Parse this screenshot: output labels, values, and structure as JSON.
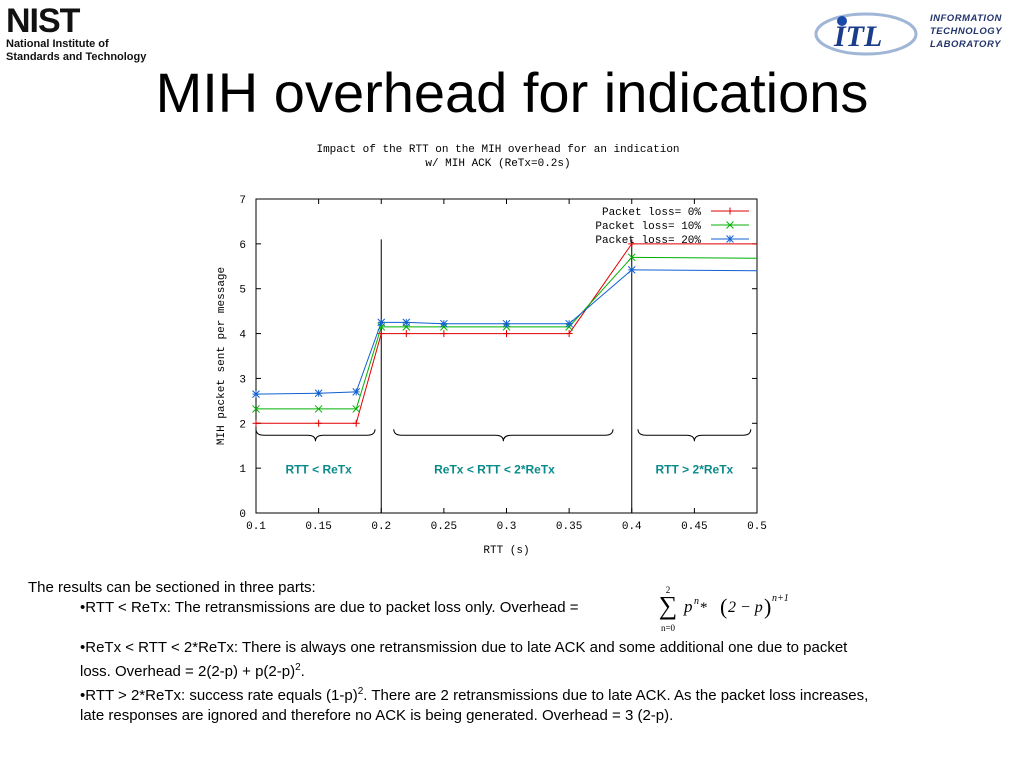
{
  "header": {
    "nist_mark": "NIST",
    "nist_name_line1": "National Institute of",
    "nist_name_line2": "Standards and Technology",
    "itl_mark": "ITL",
    "itl_line1": "INFORMATION",
    "itl_line2": "TECHNOLOGY",
    "itl_line3": "LABORATORY"
  },
  "slide_title": "MIH overhead for indications",
  "chart_data": {
    "type": "line",
    "title_line1": "Impact of the RTT on the MIH overhead for an indication",
    "title_line2": "w/ MIH ACK (ReTx=0.2s)",
    "xlabel": "RTT (s)",
    "ylabel": "MIH packet sent per message",
    "xlim": [
      0.1,
      0.5
    ],
    "ylim": [
      0,
      7
    ],
    "xticks": [
      "0.1",
      "0.15",
      "0.2",
      "0.25",
      "0.3",
      "0.35",
      "0.4",
      "0.45",
      "0.5"
    ],
    "yticks": [
      "0",
      "1",
      "2",
      "3",
      "4",
      "5",
      "6",
      "7"
    ],
    "legend_position": "top-right",
    "vlines": [
      0.2,
      0.4
    ],
    "series": [
      {
        "name": "Packet loss= 0%",
        "color": "#e00000",
        "marker": "plus",
        "x": [
          0.1,
          0.15,
          0.18,
          0.2,
          0.22,
          0.25,
          0.3,
          0.35,
          0.4,
          0.5
        ],
        "y": [
          2.0,
          2.0,
          2.0,
          4.0,
          4.0,
          4.0,
          4.0,
          4.0,
          6.0,
          6.0
        ]
      },
      {
        "name": "Packet loss= 10%",
        "color": "#00b000",
        "marker": "cross",
        "x": [
          0.1,
          0.15,
          0.18,
          0.2,
          0.22,
          0.25,
          0.3,
          0.35,
          0.4,
          0.5
        ],
        "y": [
          2.32,
          2.32,
          2.32,
          4.15,
          4.15,
          4.15,
          4.15,
          4.15,
          5.7,
          5.68
        ]
      },
      {
        "name": "Packet loss= 20%",
        "color": "#1060d0",
        "marker": "star",
        "x": [
          0.1,
          0.15,
          0.18,
          0.2,
          0.22,
          0.25,
          0.3,
          0.35,
          0.4,
          0.5
        ],
        "y": [
          2.65,
          2.67,
          2.7,
          4.25,
          4.25,
          4.22,
          4.22,
          4.22,
          5.42,
          5.4
        ]
      }
    ],
    "annotations": [
      {
        "text": "RTT < ReTx",
        "x": 0.15,
        "brace_from": 0.1,
        "brace_to": 0.195
      },
      {
        "text": "ReTx < RTT < 2*ReTx",
        "x": 0.3,
        "brace_from": 0.21,
        "brace_to": 0.385
      },
      {
        "text": "RTT > 2*ReTx",
        "x": 0.45,
        "brace_from": 0.405,
        "brace_to": 0.495
      }
    ],
    "annotation_color": "#0a8a8a"
  },
  "body": {
    "intro": "The results can be sectioned in three parts:",
    "bullet1": "•RTT < ReTx: The retransmissions are due to packet loss only. Overhead =",
    "bullet2_line1": "•ReTx < RTT < 2*ReTx: There is always one retransmission due to late ACK and some additional one due to packet",
    "bullet2_line2": "loss. Overhead = 2(2-p) + p(2-p)",
    "bullet2_sup": "2",
    "bullet2_end": ".",
    "bullet3_a": "•RTT > 2*ReTx: success rate equals (1-p)",
    "bullet3_sup": "2",
    "bullet3_b": ". There are 2 retransmissions due to late ACK. As the packet loss increases,",
    "bullet3_line2": "late responses are ignored and therefore no ACK is being generated. Overhead = 3 (2-p)."
  },
  "formula": {
    "sum_upper": "2",
    "sum_lower": "n=0",
    "sigma": "∑",
    "base": "p",
    "exp": "n",
    "mid": " * ",
    "paren_content": "2 − p",
    "outer_exp": "n+1"
  }
}
